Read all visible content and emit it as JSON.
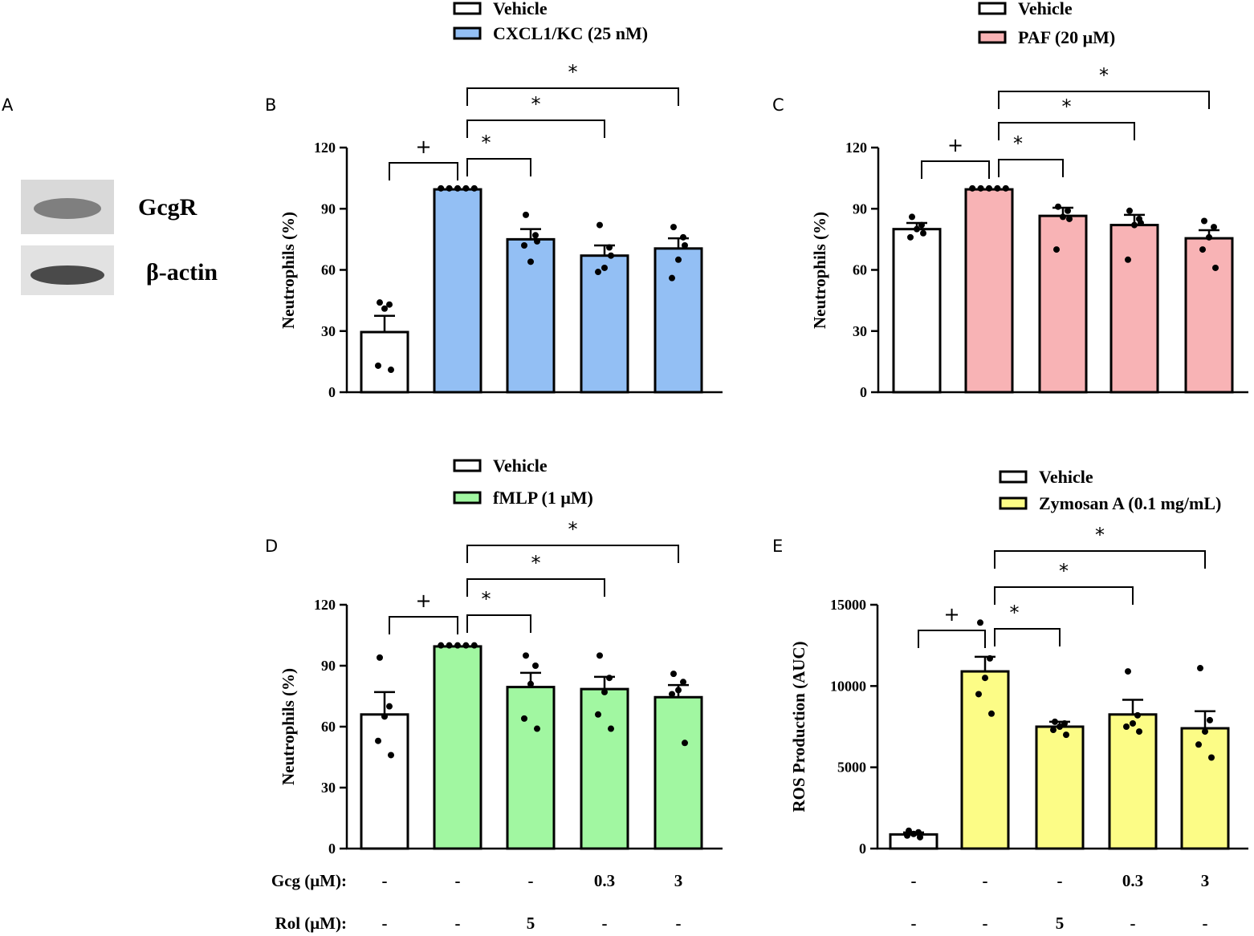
{
  "panel_a": {
    "letter": "A",
    "blots": [
      {
        "label": "GcgR"
      },
      {
        "label": "β-actin"
      }
    ]
  },
  "chart_data": [
    {
      "type": "bar",
      "panel": "B",
      "ylabel": "Neutrophils  (%)",
      "ylim": [
        0,
        120
      ],
      "yticks": [
        "0",
        "30",
        "60",
        "90",
        "120"
      ],
      "legend": [
        {
          "label": "Vehicle",
          "color": "#ffffff"
        },
        {
          "label": "CXCL1/KC (25 nM)",
          "color": "#93bff4"
        }
      ],
      "colors": [
        "#ffffff",
        "#93bff4",
        "#93bff4",
        "#93bff4",
        "#93bff4"
      ],
      "values": [
        29.5,
        99.5,
        75,
        67,
        70.5
      ],
      "errors": [
        8,
        0,
        5,
        5,
        5
      ],
      "points": [
        [
          44,
          43,
          41,
          13,
          11
        ],
        [
          100,
          100,
          100,
          100,
          100
        ],
        [
          87,
          77,
          64,
          72,
          74
        ],
        [
          82,
          71,
          61,
          59,
          67
        ],
        [
          81,
          76,
          65,
          56,
          72
        ]
      ],
      "significance": [
        {
          "symbol": "+",
          "from": 0,
          "to": 1
        },
        {
          "symbol": "*",
          "from": 1,
          "to": 2
        },
        {
          "symbol": "*",
          "from": 1,
          "to": 3
        },
        {
          "symbol": "*",
          "from": 1,
          "to": 4
        }
      ]
    },
    {
      "type": "bar",
      "panel": "C",
      "ylabel": "Neutrophils  (%)",
      "ylim": [
        0,
        120
      ],
      "yticks": [
        "0",
        "30",
        "60",
        "90",
        "120"
      ],
      "legend": [
        {
          "label": "Vehicle",
          "color": "#ffffff"
        },
        {
          "label": "PAF (20 μM)",
          "color": "#f8b3b5"
        }
      ],
      "colors": [
        "#ffffff",
        "#f8b3b5",
        "#f8b3b5",
        "#f8b3b5",
        "#f8b3b5"
      ],
      "values": [
        80,
        99.5,
        86.5,
        82,
        75.5
      ],
      "errors": [
        3,
        0,
        4,
        5,
        4
      ],
      "points": [
        [
          86,
          82,
          80,
          76,
          78
        ],
        [
          100,
          100,
          100,
          100,
          100
        ],
        [
          91,
          89,
          86,
          70,
          85
        ],
        [
          89,
          85,
          82,
          65,
          83
        ],
        [
          84,
          81,
          76,
          70,
          61
        ]
      ],
      "significance": [
        {
          "symbol": "+",
          "from": 0,
          "to": 1
        },
        {
          "symbol": "*",
          "from": 1,
          "to": 2
        },
        {
          "symbol": "*",
          "from": 1,
          "to": 3
        },
        {
          "symbol": "*",
          "from": 1,
          "to": 4
        }
      ]
    },
    {
      "type": "bar",
      "panel": "D",
      "ylabel": "Neutrophils  (%)",
      "ylim": [
        0,
        120
      ],
      "yticks": [
        "0",
        "30",
        "60",
        "90",
        "120"
      ],
      "legend": [
        {
          "label": "Vehicle",
          "color": "#ffffff"
        },
        {
          "label": "fMLP (1 μM)",
          "color": "#a1f7a1"
        }
      ],
      "colors": [
        "#ffffff",
        "#a1f7a1",
        "#a1f7a1",
        "#a1f7a1",
        "#a1f7a1"
      ],
      "values": [
        66,
        99.5,
        79.5,
        78.5,
        74.5
      ],
      "errors": [
        11,
        0,
        7,
        6,
        6
      ],
      "points": [
        [
          94,
          70,
          65,
          53,
          46
        ],
        [
          100,
          100,
          100,
          100,
          100
        ],
        [
          95,
          90,
          81,
          64,
          59
        ],
        [
          95,
          84,
          77,
          66,
          59
        ],
        [
          86,
          82,
          78,
          76,
          52
        ]
      ],
      "significance": [
        {
          "symbol": "+",
          "from": 0,
          "to": 1
        },
        {
          "symbol": "*",
          "from": 1,
          "to": 2
        },
        {
          "symbol": "*",
          "from": 1,
          "to": 3
        },
        {
          "symbol": "*",
          "from": 1,
          "to": 4
        }
      ],
      "conditions": [
        {
          "label": "Gcg (μM):",
          "values": [
            "-",
            "-",
            "-",
            "0.3",
            "3"
          ]
        },
        {
          "label": "Rol (μM):",
          "values": [
            "-",
            "-",
            "5",
            "-",
            "-"
          ]
        }
      ]
    },
    {
      "type": "bar",
      "panel": "E",
      "ylabel": "ROS Production (AUC)",
      "ylim": [
        0,
        15000
      ],
      "yticks": [
        "0",
        "5000",
        "10000",
        "15000"
      ],
      "legend": [
        {
          "label": "Vehicle",
          "color": "#ffffff"
        },
        {
          "label": "Zymosan A (0.1 mg/mL)",
          "color": "#fcfc86"
        }
      ],
      "colors": [
        "#ffffff",
        "#fcfc86",
        "#fcfc86",
        "#fcfc86",
        "#fcfc86"
      ],
      "values": [
        870,
        10900,
        7500,
        8250,
        7400
      ],
      "errors": [
        120,
        900,
        300,
        900,
        1050
      ],
      "points": [
        [
          1100,
          1000,
          900,
          800,
          700
        ],
        [
          13900,
          11700,
          10500,
          9500,
          8300
        ],
        [
          7800,
          7700,
          7500,
          7300,
          7000
        ],
        [
          10900,
          8200,
          7700,
          7500,
          7200
        ],
        [
          11100,
          7900,
          7200,
          6400,
          5600
        ]
      ],
      "significance": [
        {
          "symbol": "+",
          "from": 0,
          "to": 1
        },
        {
          "symbol": "*",
          "from": 1,
          "to": 2
        },
        {
          "symbol": "*",
          "from": 1,
          "to": 3
        },
        {
          "symbol": "*",
          "from": 1,
          "to": 4
        }
      ],
      "conditions": [
        {
          "label": "",
          "values": [
            "-",
            "-",
            "-",
            "0.3",
            "3"
          ]
        },
        {
          "label": "",
          "values": [
            "-",
            "-",
            "5",
            "-",
            "-"
          ]
        }
      ]
    }
  ]
}
